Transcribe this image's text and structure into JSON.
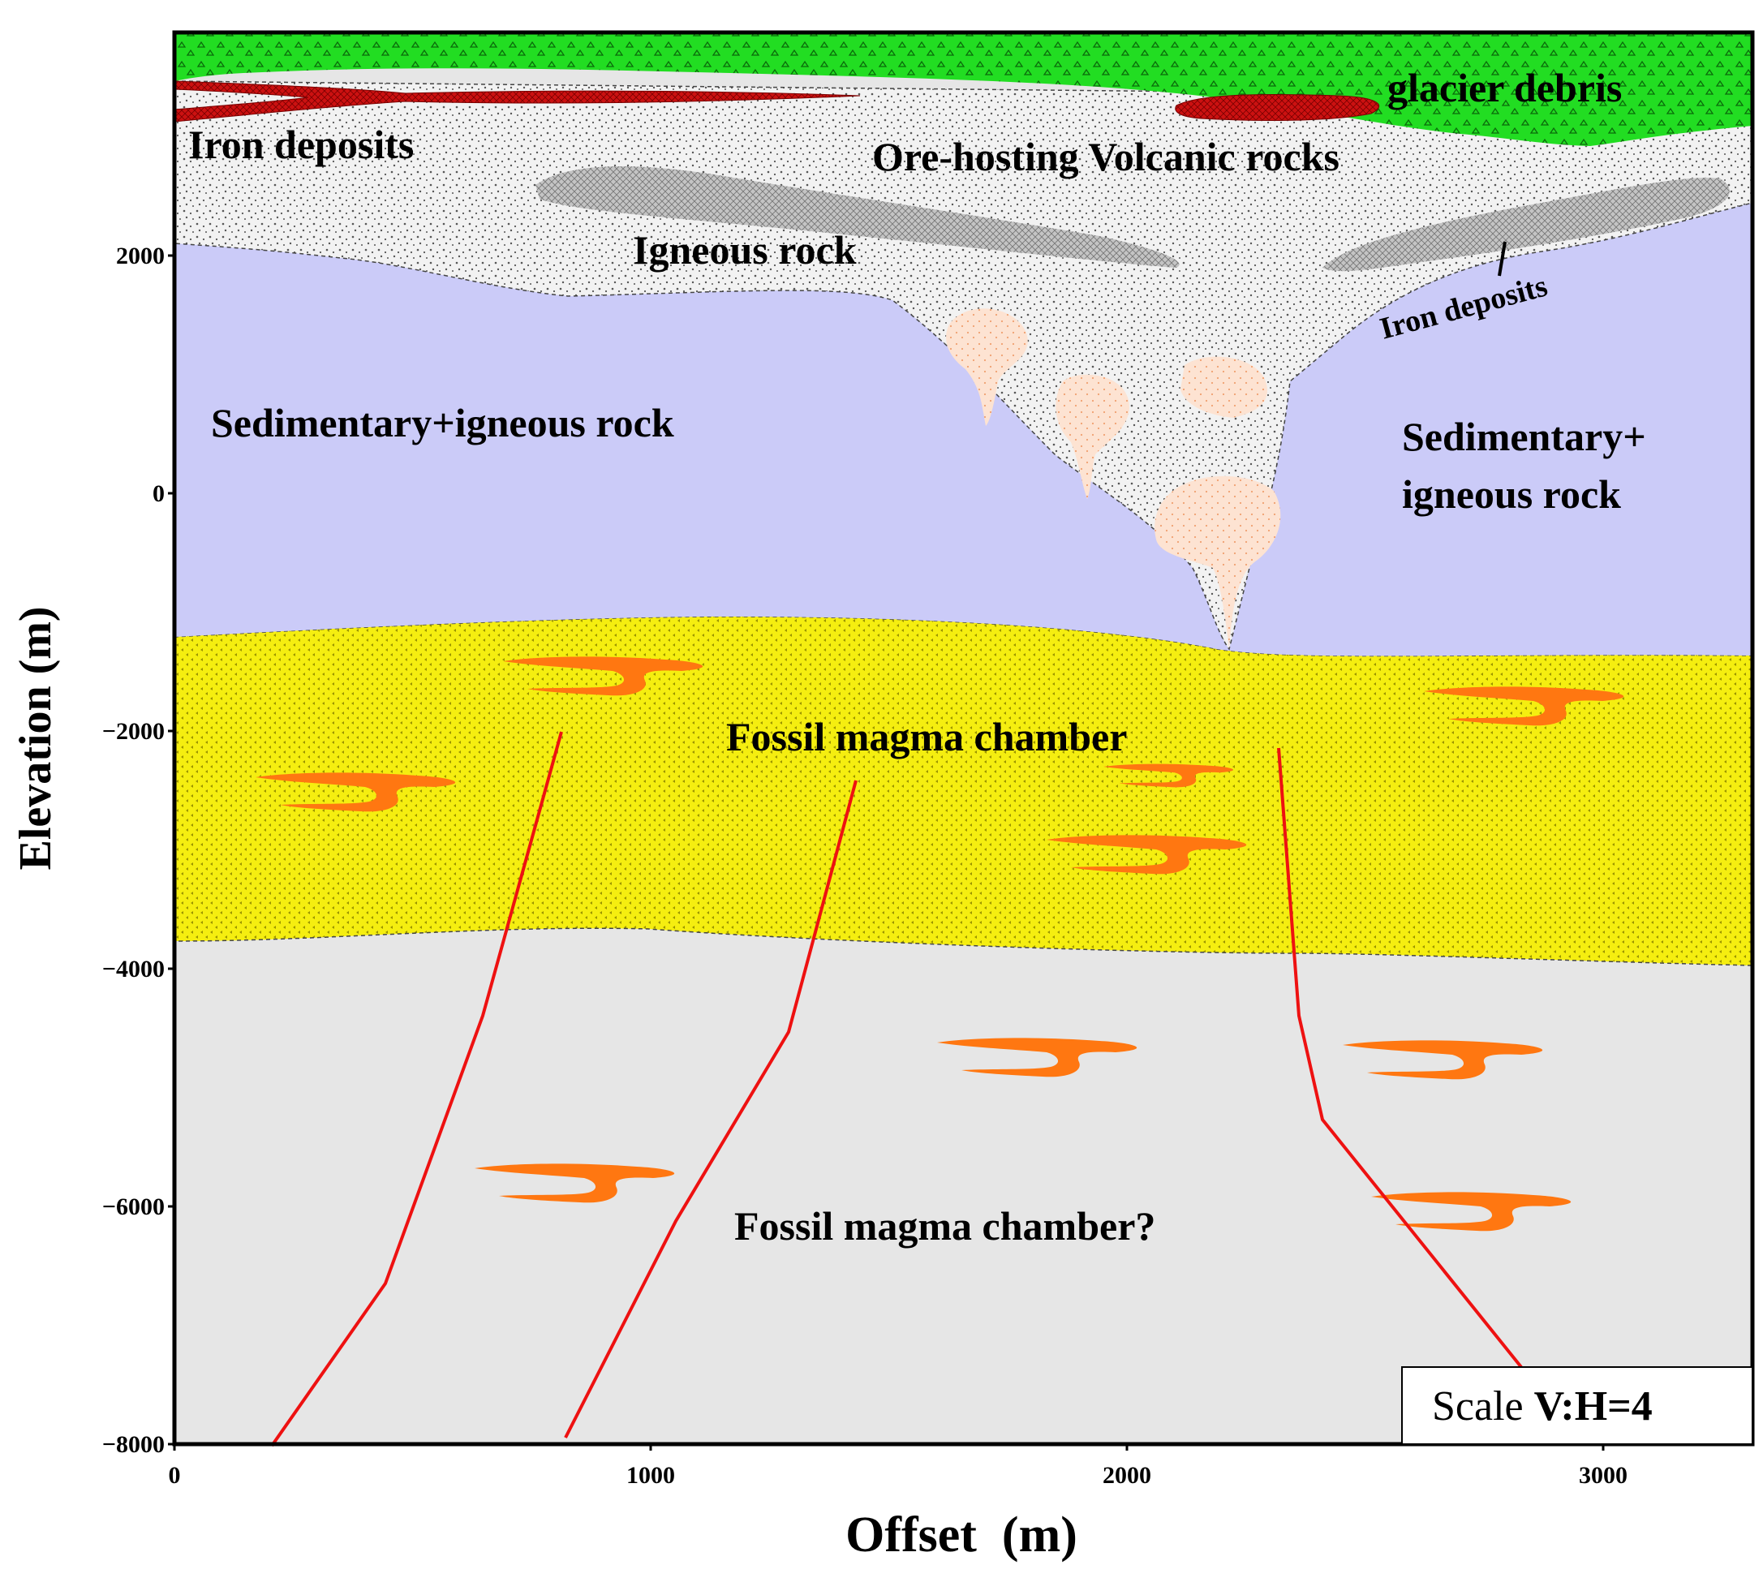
{
  "axes": {
    "xlabel": "Offset  (m)",
    "ylabel": "Elevation (m)",
    "xticks": [
      "0",
      "1000",
      "2000",
      "3000"
    ],
    "yticks": [
      "2000",
      "0",
      "−2000",
      "−4000",
      "−6000",
      "−8000"
    ]
  },
  "units": [
    {
      "id": "glacier",
      "label": "glacier debris",
      "color": "#22dd22"
    },
    {
      "id": "iron-top",
      "label": "Iron deposits",
      "color": "#cc1111"
    },
    {
      "id": "volcanic",
      "label": "Ore-hosting Volcanic rocks",
      "color": "#f0f0f0"
    },
    {
      "id": "igneous",
      "label": "Igneous rock",
      "color": "#bfbfbf"
    },
    {
      "id": "iron-right",
      "label": "Iron deposits",
      "color": "#cc1111"
    },
    {
      "id": "sed-left",
      "label": "Sedimentary+igneous rock",
      "color": "#cbcbf8"
    },
    {
      "id": "sed-right-1",
      "label": "Sedimentary+",
      "color": "#cbcbf8"
    },
    {
      "id": "sed-right-2",
      "label": "igneous rock",
      "color": "#cbcbf8"
    },
    {
      "id": "fossil",
      "label": "Fossil magma chamber",
      "color": "#f5ee10"
    },
    {
      "id": "fossil-q",
      "label": "Fossil magma chamber?",
      "color": "#e6e6e6"
    }
  ],
  "scale": {
    "prefix": "Scale ",
    "ratio": "V:H=4"
  },
  "colors": {
    "fault": "#ee1111",
    "intrusion": "#ff7711",
    "plume": "#fde0cc"
  }
}
